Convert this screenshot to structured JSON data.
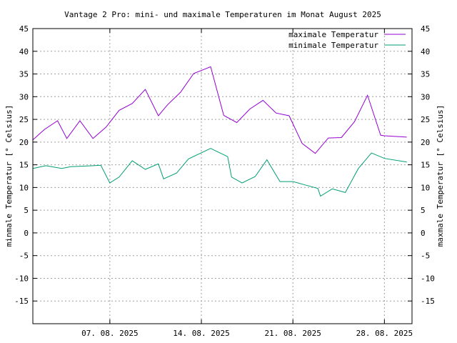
{
  "chart_data": {
    "type": "line",
    "title": "Vantage 2 Pro: mini- und maximale Temperaturen im Monat August 2025",
    "ylabel_left": "minmale Temperatur [° Celsius]",
    "ylabel_right": "maxmale Temperatur [° Celsius]",
    "ylim": [
      -20,
      45
    ],
    "yticks": [
      -15,
      -10,
      -5,
      0,
      5,
      10,
      15,
      20,
      25,
      30,
      35,
      40,
      45
    ],
    "xlim": [
      0,
      29
    ],
    "xticks": [
      {
        "x": 5.89,
        "label": "07. 08. 2025"
      },
      {
        "x": 12.89,
        "label": "14. 08. 2025"
      },
      {
        "x": 19.89,
        "label": "21. 08. 2025"
      },
      {
        "x": 26.89,
        "label": "28. 08. 2025"
      }
    ],
    "grid": true,
    "legend_position": "top-right",
    "series": [
      {
        "name": "maximale Temperatur",
        "color": "#9400d3",
        "x": [
          0,
          0.89,
          1.89,
          2.6,
          3.6,
          4.6,
          5.6,
          6.6,
          7.6,
          8.6,
          9.6,
          10.3,
          11.3,
          12.3,
          13.6,
          14.6,
          15.6,
          16.6,
          17.6,
          18.6,
          19.6,
          20.6,
          21.6,
          22.6,
          23.6,
          24.6,
          25.6,
          26.6,
          26.89,
          28.6
        ],
        "values": [
          20.5,
          22.8,
          24.7,
          20.8,
          24.7,
          20.8,
          23.3,
          27.0,
          28.5,
          31.6,
          25.8,
          28.2,
          31.0,
          35.1,
          36.6,
          25.9,
          24.3,
          27.3,
          29.2,
          26.4,
          25.8,
          19.7,
          17.5,
          20.9,
          21.0,
          24.5,
          30.3,
          21.5,
          21.4,
          21.1
        ]
      },
      {
        "name": "minimale Temperatur",
        "color": "#009e73",
        "x": [
          0,
          1.0,
          2.2,
          2.9,
          4.6,
          5.2,
          5.89,
          6.6,
          7.6,
          8.6,
          9.6,
          10.0,
          11.0,
          11.9,
          13.6,
          14.9,
          15.2,
          16.0,
          17.0,
          17.9,
          18.9,
          19.9,
          20.9,
          21.8,
          22.0,
          22.9,
          23.9,
          24.9,
          25.9,
          26.89,
          28.6
        ],
        "values": [
          14.2,
          14.8,
          14.2,
          14.6,
          14.8,
          14.9,
          11.0,
          12.3,
          15.9,
          14.0,
          15.2,
          11.9,
          13.2,
          16.3,
          18.6,
          16.8,
          12.3,
          11.0,
          12.4,
          16.1,
          11.3,
          11.3,
          10.5,
          9.8,
          8.1,
          9.7,
          8.9,
          14.2,
          17.6,
          16.4,
          15.6
        ]
      }
    ]
  }
}
